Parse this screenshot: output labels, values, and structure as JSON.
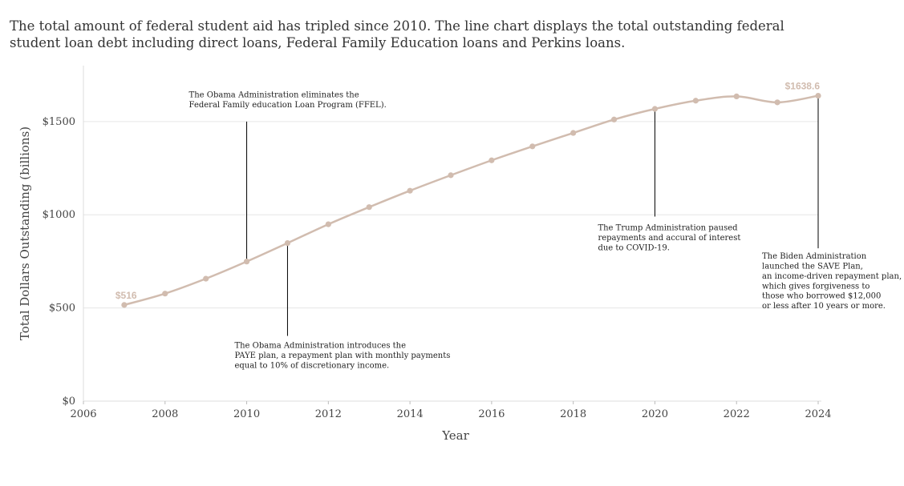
{
  "headline": "The total amount of federal student aid has tripled since 2010. The line chart displays the total outstanding federal student loan debt including direct loans, Federal Family Education loans and Perkins loans.",
  "colors": {
    "line": "#d1bcaf",
    "grid": "#e6e6e6",
    "annotation": "#000000",
    "label": "#d1bcaf"
  },
  "chart_data": {
    "type": "line",
    "title": "",
    "xlabel": "Year",
    "ylabel": "Total Dollars Outstanding (billions)",
    "xlim": [
      2006,
      2024
    ],
    "ylim": [
      0,
      1800
    ],
    "grid": true,
    "x_ticks": [
      "2006",
      "2008",
      "2010",
      "2012",
      "2014",
      "2016",
      "2018",
      "2020",
      "2022",
      "2024"
    ],
    "y_ticks": [
      "$0",
      "$500",
      "$1000",
      "$1500"
    ],
    "series": [
      {
        "x": [
          2007,
          2008,
          2009,
          2010,
          2011,
          2012,
          2013,
          2014,
          2015,
          2016,
          2017,
          2018,
          2019,
          2020,
          2021,
          2022,
          2023,
          2024
        ],
        "values": [
          516,
          577,
          657,
          749,
          848,
          949,
          1041,
          1129,
          1212,
          1292,
          1367,
          1439,
          1511,
          1568,
          1612,
          1635,
          1603,
          1638.6
        ]
      }
    ],
    "point_labels": [
      {
        "x": 2007,
        "text": "$516"
      },
      {
        "x": 2024,
        "text": "$1638.6"
      }
    ],
    "annotations": [
      {
        "x": 2010,
        "line_from": 749,
        "line_to": 1500,
        "text_pos": "above",
        "lines": [
          "The Obama Administration eliminates the",
          "Federal Family education Loan Program (FFEL)."
        ]
      },
      {
        "x": 2011,
        "line_from": 848,
        "line_to": 350,
        "text_pos": "below",
        "lines": [
          "The Obama Administration introduces the",
          "PAYE plan, a repayment plan with monthly payments",
          "equal to 10% of discretionary income."
        ]
      },
      {
        "x": 2020,
        "line_from": 1568,
        "line_to": 990,
        "text_pos": "below",
        "lines": [
          "The Trump Administration paused",
          "repayments and accural of interest",
          "due to COVID-19."
        ]
      },
      {
        "x": 2024,
        "line_from": 1638.6,
        "line_to": 820,
        "text_pos": "below",
        "lines": [
          "The Biden Administration",
          "launched the SAVE Plan,",
          "an income-driven repayment plan,",
          "which gives forgiveness to",
          "those who borrowed $12,000",
          "or less after 10 years or more."
        ]
      }
    ]
  }
}
